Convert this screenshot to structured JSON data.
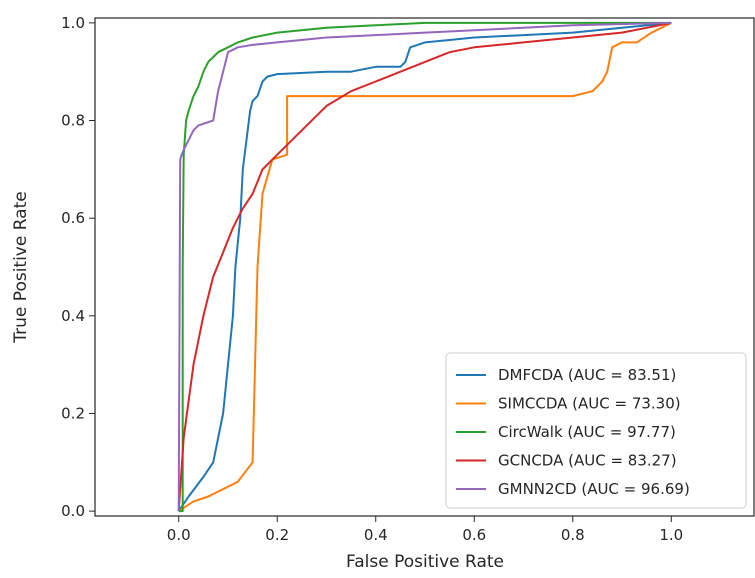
{
  "chart_data": {
    "type": "line",
    "title": "",
    "xlabel": "False Positive Rate",
    "ylabel": "True Positive Rate",
    "xlim": [
      -0.17,
      1.17
    ],
    "ylim": [
      -0.01,
      1.01
    ],
    "xticks": [
      0.0,
      0.2,
      0.4,
      0.6,
      0.8,
      1.0
    ],
    "yticks": [
      0.0,
      0.2,
      0.4,
      0.6,
      0.8,
      1.0
    ],
    "xtick_labels": [
      "0.0",
      "0.2",
      "0.4",
      "0.6",
      "0.8",
      "1.0"
    ],
    "ytick_labels": [
      "0.0",
      "0.2",
      "0.4",
      "0.6",
      "0.8",
      "1.0"
    ],
    "grid": false,
    "legend_position": "lower-right",
    "series": [
      {
        "name": "DMFCDA (AUC = 83.51)",
        "color": "#1f77b4",
        "x": [
          0.0,
          0.02,
          0.05,
          0.07,
          0.09,
          0.1,
          0.11,
          0.115,
          0.12,
          0.125,
          0.13,
          0.14,
          0.145,
          0.15,
          0.16,
          0.17,
          0.18,
          0.2,
          0.3,
          0.35,
          0.4,
          0.45,
          0.46,
          0.47,
          0.5,
          0.55,
          0.6,
          0.7,
          0.8,
          0.9,
          1.0
        ],
        "y": [
          0.0,
          0.03,
          0.07,
          0.1,
          0.2,
          0.3,
          0.4,
          0.5,
          0.55,
          0.6,
          0.7,
          0.78,
          0.82,
          0.84,
          0.85,
          0.88,
          0.89,
          0.895,
          0.9,
          0.9,
          0.91,
          0.91,
          0.92,
          0.95,
          0.96,
          0.965,
          0.97,
          0.975,
          0.98,
          0.99,
          1.0
        ]
      },
      {
        "name": "SIMCCDA (AUC = 73.30)",
        "color": "#ff7f0e",
        "x": [
          0.0,
          0.03,
          0.06,
          0.12,
          0.15,
          0.16,
          0.17,
          0.19,
          0.22,
          0.22,
          0.5,
          0.8,
          0.84,
          0.86,
          0.87,
          0.88,
          0.9,
          0.93,
          0.96,
          0.98,
          1.0
        ],
        "y": [
          0.0,
          0.02,
          0.03,
          0.06,
          0.1,
          0.5,
          0.65,
          0.72,
          0.73,
          0.85,
          0.85,
          0.85,
          0.86,
          0.88,
          0.9,
          0.95,
          0.96,
          0.96,
          0.98,
          0.99,
          1.0
        ]
      },
      {
        "name": "CircWalk (AUC = 97.77)",
        "color": "#2ca02c",
        "x": [
          0.0,
          0.008,
          0.008,
          0.01,
          0.015,
          0.02,
          0.03,
          0.04,
          0.05,
          0.06,
          0.07,
          0.08,
          0.09,
          0.1,
          0.12,
          0.15,
          0.2,
          0.3,
          0.4,
          0.5,
          0.7,
          1.0
        ],
        "y": [
          0.0,
          0.0,
          0.5,
          0.73,
          0.8,
          0.82,
          0.85,
          0.87,
          0.9,
          0.92,
          0.93,
          0.94,
          0.945,
          0.95,
          0.96,
          0.97,
          0.98,
          0.99,
          0.995,
          1.0,
          1.0,
          1.0
        ]
      },
      {
        "name": "GCNCDA (AUC = 83.27)",
        "color": "#d62728",
        "x": [
          0.0,
          0.01,
          0.03,
          0.05,
          0.07,
          0.09,
          0.11,
          0.13,
          0.15,
          0.17,
          0.2,
          0.23,
          0.26,
          0.3,
          0.35,
          0.4,
          0.45,
          0.5,
          0.55,
          0.6,
          0.7,
          0.8,
          0.9,
          0.95,
          1.0
        ],
        "y": [
          0.0,
          0.15,
          0.3,
          0.4,
          0.48,
          0.53,
          0.58,
          0.62,
          0.65,
          0.7,
          0.73,
          0.76,
          0.79,
          0.83,
          0.86,
          0.88,
          0.9,
          0.92,
          0.94,
          0.95,
          0.96,
          0.97,
          0.98,
          0.99,
          1.0
        ]
      },
      {
        "name": "GMNN2CD (AUC = 96.69)",
        "color": "#9467bd",
        "x": [
          0.0,
          0.003,
          0.006,
          0.01,
          0.02,
          0.03,
          0.04,
          0.07,
          0.08,
          0.09,
          0.1,
          0.12,
          0.15,
          0.2,
          0.3,
          0.4,
          0.5,
          0.6,
          0.7,
          0.8,
          1.0
        ],
        "y": [
          0.0,
          0.72,
          0.73,
          0.74,
          0.76,
          0.78,
          0.79,
          0.8,
          0.86,
          0.9,
          0.94,
          0.95,
          0.955,
          0.96,
          0.97,
          0.975,
          0.98,
          0.985,
          0.99,
          0.995,
          1.0
        ]
      }
    ]
  }
}
